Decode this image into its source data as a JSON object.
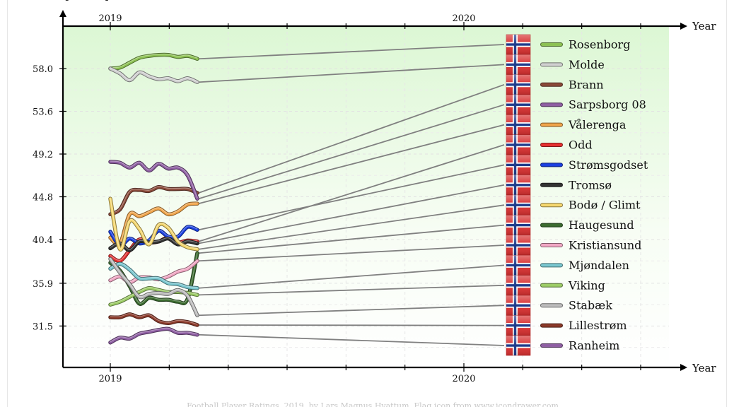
{
  "chart_data": {
    "type": "line",
    "ylabel": "Expected points",
    "xlabel": "Year",
    "x_ticks": [
      "2019",
      "2020"
    ],
    "y_ticks": [
      "58.0",
      "53.6",
      "49.2",
      "44.8",
      "40.4",
      "35.9",
      "31.5"
    ],
    "ylim": [
      27.5,
      62.0
    ],
    "grid": true,
    "legend": "right",
    "series": [
      {
        "name": "Rosenborg",
        "color": "#8cc152",
        "values": [
          58.0,
          58.1,
          58.6,
          59.1,
          59.3,
          59.4,
          59.4,
          59.2,
          59.3,
          59.0
        ],
        "end": 59.0
      },
      {
        "name": "Molde",
        "color": "#d0d0d0",
        "values": [
          58.0,
          57.5,
          56.8,
          57.6,
          57.2,
          56.9,
          57.0,
          56.7,
          57.0,
          56.6
        ],
        "end": 56.6
      },
      {
        "name": "Brann",
        "color": "#8b4a3a",
        "values": [
          43.0,
          43.5,
          45.3,
          45.5,
          45.4,
          45.8,
          45.6,
          45.6,
          45.6,
          45.2
        ],
        "end": 45.2
      },
      {
        "name": "Sarpsborg 08",
        "color": "#8e5ea2",
        "values": [
          48.4,
          48.3,
          47.8,
          48.3,
          47.5,
          48.2,
          47.7,
          47.8,
          47.0,
          44.6
        ],
        "end": 44.6
      },
      {
        "name": "Vålerenga",
        "color": "#f0a44a",
        "values": [
          40.6,
          40.0,
          43.0,
          42.8,
          43.2,
          43.6,
          43.0,
          43.3,
          44.0,
          44.1
        ],
        "end": 44.1
      },
      {
        "name": "Odd",
        "color": "#e53030",
        "values": [
          38.7,
          38.2,
          39.3,
          40.4,
          40.1,
          40.2,
          40.6,
          40.1,
          40.3,
          40.2
        ],
        "end": 40.2
      },
      {
        "name": "Strømsgodset",
        "color": "#1a3fe0",
        "values": [
          41.2,
          39.8,
          40.5,
          40.0,
          40.3,
          41.3,
          40.7,
          40.7,
          41.7,
          41.4
        ],
        "end": 41.4
      },
      {
        "name": "Tromsø",
        "color": "#333333",
        "values": [
          39.5,
          40.0,
          39.3,
          40.2,
          40.1,
          40.2,
          40.5,
          39.9,
          40.2,
          40.0
        ],
        "end": 40.0
      },
      {
        "name": "Bodø / Glimt",
        "color": "#f5d76e",
        "values": [
          44.6,
          39.4,
          42.3,
          41.5,
          39.9,
          41.9,
          41.6,
          40.2,
          39.6,
          39.4
        ],
        "end": 39.4
      },
      {
        "name": "Haugesund",
        "color": "#3b6b2f",
        "values": [
          38.0,
          37.2,
          35.6,
          33.8,
          34.4,
          34.2,
          34.2,
          34.0,
          34.3,
          39.0
        ],
        "end": 39.0
      },
      {
        "name": "Kristiansund",
        "color": "#f1a7c4",
        "values": [
          36.2,
          36.6,
          36.0,
          36.5,
          36.5,
          36.3,
          36.6,
          37.1,
          37.4,
          38.2
        ],
        "end": 38.2
      },
      {
        "name": "Mjøndalen",
        "color": "#79c6cf",
        "values": [
          37.4,
          37.9,
          37.3,
          36.4,
          36.4,
          36.4,
          35.9,
          35.8,
          35.5,
          35.4
        ],
        "end": 35.4
      },
      {
        "name": "Viking",
        "color": "#9ccc65",
        "values": [
          33.7,
          34.0,
          34.5,
          35.0,
          35.4,
          35.2,
          35.0,
          35.0,
          34.9,
          34.7
        ],
        "end": 34.7
      },
      {
        "name": "Stabæk",
        "color": "#bdbdbd",
        "values": [
          38.4,
          37.0,
          35.8,
          34.5,
          34.8,
          34.9,
          34.8,
          35.2,
          34.6,
          32.6
        ],
        "end": 32.6
      },
      {
        "name": "Lillestrøm",
        "color": "#8b3a2a",
        "values": [
          32.4,
          32.4,
          32.7,
          32.4,
          32.6,
          32.0,
          31.8,
          32.0,
          31.9,
          31.6
        ],
        "end": 31.6
      },
      {
        "name": "Ranheim",
        "color": "#8e5ea2",
        "values": [
          29.8,
          30.3,
          30.2,
          30.7,
          30.9,
          31.1,
          31.2,
          30.8,
          30.8,
          30.6
        ],
        "end": 30.6
      }
    ]
  },
  "footer": "Football Player Ratings, 2019, by Lars Magnus Hvattum. Flag icon from www.icondrawer.com"
}
